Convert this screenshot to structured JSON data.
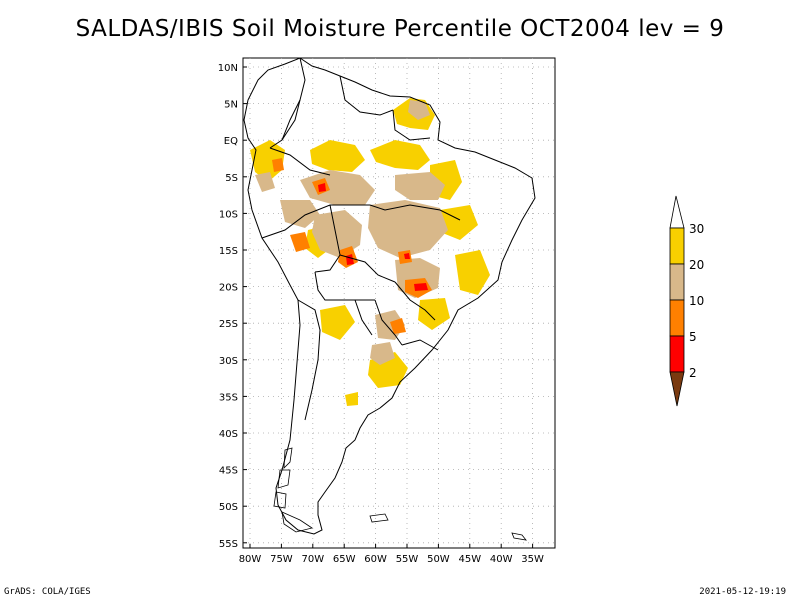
{
  "title": "SALDAS/IBIS Soil Moisture Percentile OCT2004 lev = 9",
  "map": {
    "lat_labels": [
      "10N",
      "5N",
      "EQ",
      "5S",
      "10S",
      "15S",
      "20S",
      "25S",
      "30S",
      "35S",
      "40S",
      "45S",
      "50S",
      "55S"
    ],
    "lon_labels": [
      "80W",
      "75W",
      "70W",
      "65W",
      "60W",
      "55W",
      "50W",
      "45W",
      "40W",
      "35W"
    ]
  },
  "legend": {
    "labels": [
      "30",
      "20",
      "10",
      "5",
      "2"
    ],
    "colors": {
      "gt30": "#ffffff",
      "20_30": "#f8d000",
      "10_20": "#d8b88a",
      "5_10": "#ff8000",
      "2_5": "#ff0000",
      "lt2": "#7a3a10"
    }
  },
  "footer": {
    "left": "GrADS: COLA/IGES",
    "right": "2021-05-12-19:19"
  }
}
